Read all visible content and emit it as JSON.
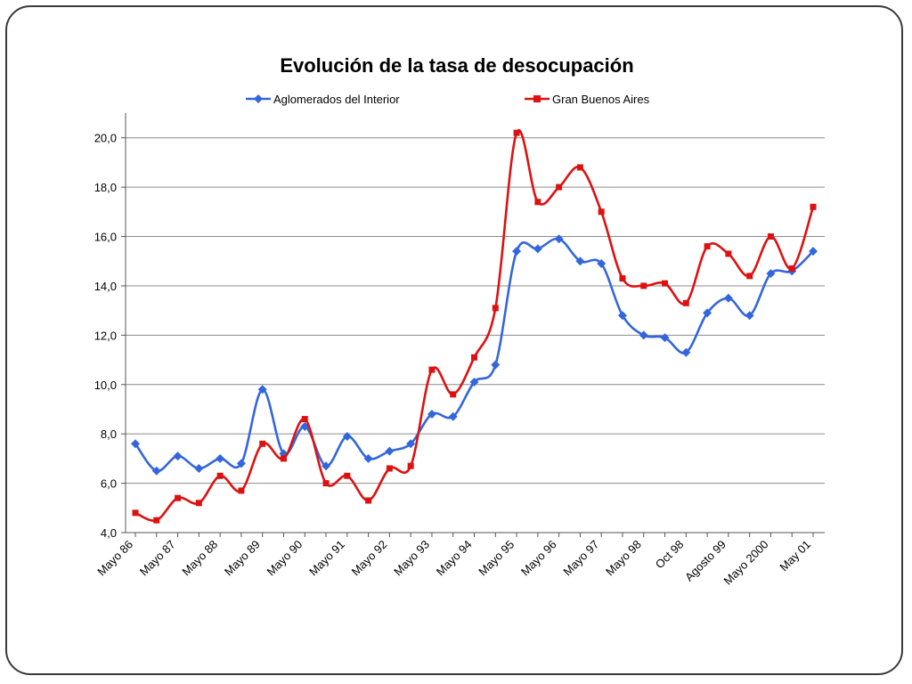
{
  "chart_data": {
    "type": "line",
    "title": "Evolución de la tasa de desocupación",
    "ylim": [
      4,
      21
    ],
    "y_ticks": [
      "4,0",
      "6,0",
      "8,0",
      "10,0",
      "12,0",
      "14,0",
      "16,0",
      "18,0",
      "20,0"
    ],
    "y_tick_values": [
      4,
      6,
      8,
      10,
      12,
      14,
      16,
      18,
      20
    ],
    "x_tick_labels": [
      "Mayo 86",
      "Mayo 87",
      "Mayo 88",
      "Mayo 89",
      "Mayo 90",
      "Mayo 91",
      "Mayo 92",
      "Mayo 93",
      "Mayo 94",
      "Mayo 95",
      "Mayo 96",
      "Mayo 97",
      "Mayo 98",
      "Oct 98",
      "Agosto 99",
      "Mayo 2000",
      "May 01"
    ],
    "grid": "horizontal",
    "legend_position": "top",
    "series": [
      {
        "name": "Aglomerados del Interior",
        "color": "#3366dd",
        "marker": "diamond",
        "values": [
          7.6,
          6.5,
          7.1,
          6.6,
          7.0,
          6.8,
          9.8,
          7.2,
          8.3,
          6.7,
          7.9,
          7.0,
          7.3,
          7.6,
          8.8,
          8.7,
          10.1,
          10.8,
          15.4,
          15.5,
          15.9,
          15.0,
          14.9,
          12.8,
          12.0,
          11.9,
          11.3,
          12.9,
          13.5,
          12.8,
          14.5,
          14.6,
          15.4
        ]
      },
      {
        "name": "Gran Buenos Aires",
        "color": "#dd1111",
        "marker": "square",
        "values": [
          4.8,
          4.5,
          5.4,
          5.2,
          6.3,
          5.7,
          7.6,
          7.0,
          8.6,
          6.0,
          6.3,
          5.3,
          6.6,
          6.7,
          10.6,
          9.6,
          11.1,
          13.1,
          20.2,
          17.4,
          18.0,
          18.8,
          17.0,
          14.3,
          14.0,
          14.1,
          13.3,
          15.6,
          15.3,
          14.4,
          16.0,
          14.7,
          17.2
        ]
      }
    ]
  }
}
